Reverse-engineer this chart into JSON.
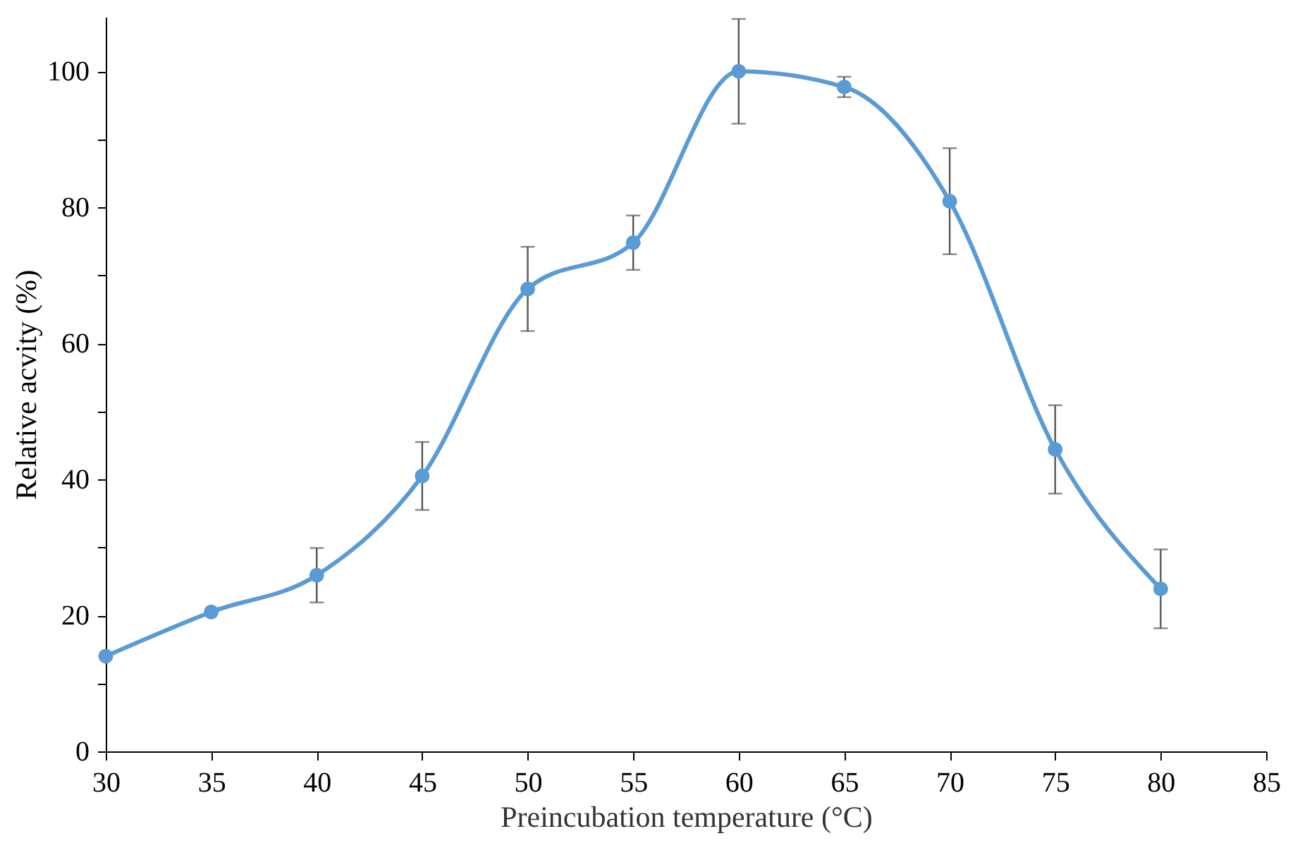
{
  "chart_data": {
    "type": "line",
    "xlabel": "Preincubation temperature (°C)",
    "ylabel": "Relative acvity (%)",
    "x": [
      30,
      35,
      40,
      45,
      50,
      55,
      60,
      65,
      70,
      75,
      80
    ],
    "series": [
      {
        "color": "#5b9bd5",
        "values": [
          14.0,
          20.5,
          25.9,
          40.5,
          68.0,
          74.8,
          100.0,
          97.7,
          80.9,
          44.4,
          23.9
        ],
        "errors": [
          null,
          null,
          4.0,
          5.0,
          6.2,
          4.0,
          7.7,
          1.5,
          7.8,
          6.5,
          5.8
        ]
      }
    ],
    "xlim": [
      30,
      85
    ],
    "xticks": [
      30,
      35,
      40,
      45,
      50,
      55,
      60,
      65,
      70,
      75,
      80,
      85
    ],
    "ylim": [
      0,
      108
    ],
    "yticks": [
      0,
      {
        "value": 10,
        "label": null
      },
      20,
      {
        "value": 30,
        "label": null
      },
      40,
      {
        "value": 50,
        "label": null
      },
      60,
      {
        "value": 70,
        "label": null
      },
      80,
      {
        "value": 90,
        "label": null
      },
      100
    ],
    "grid": false,
    "marker": "circle",
    "line_style": "solid"
  }
}
